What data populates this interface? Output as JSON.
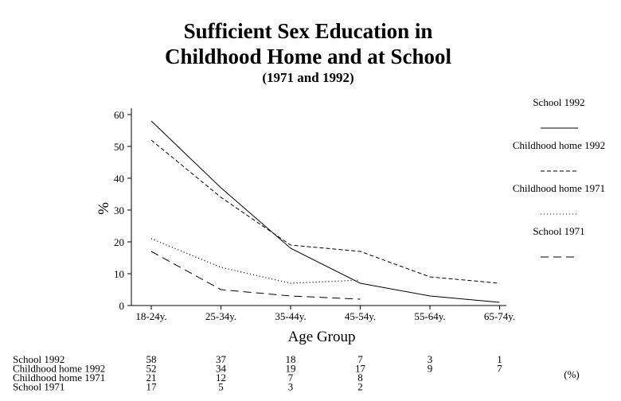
{
  "chart_data": {
    "type": "line",
    "title_line1": "Sufficient Sex Education in",
    "title_line2": "Childhood Home and at School",
    "subtitle": "(1971 and 1992)",
    "xlabel": "Age Group",
    "ylabel": "%",
    "ylim": [
      0,
      65
    ],
    "yticks": [
      0,
      10,
      20,
      30,
      40,
      50,
      60
    ],
    "grid": false,
    "legend_position": "right",
    "categories": [
      "18-24y.",
      "25-34y.",
      "35-44y.",
      "45-54y.",
      "55-64y.",
      "65-74y."
    ],
    "series": [
      {
        "name": "School 1992",
        "values": [
          58,
          37,
          18,
          7,
          3,
          1
        ],
        "dash": "solid"
      },
      {
        "name": "Childhood home 1992",
        "values": [
          52,
          34,
          19,
          17,
          9,
          7
        ],
        "dash": "dashed"
      },
      {
        "name": "Childhood home 1971",
        "values": [
          21,
          12,
          7,
          8,
          null,
          null
        ],
        "dash": "dotted"
      },
      {
        "name": "School 1971",
        "values": [
          17,
          5,
          3,
          2,
          null,
          null
        ],
        "dash": "long-dash"
      }
    ],
    "table_unit": "(%)"
  }
}
